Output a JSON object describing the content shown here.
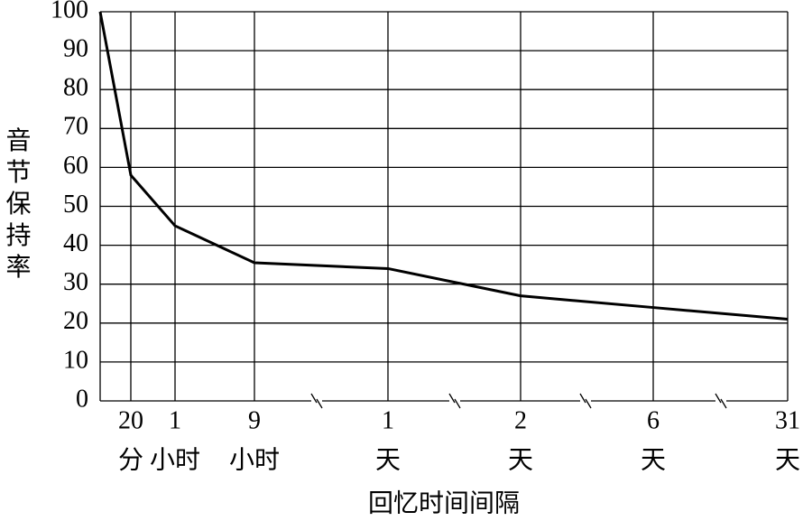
{
  "chart_data": {
    "type": "line",
    "y_label": "音节保持率",
    "x_label": "回忆时间间隔",
    "categories": [
      null,
      "20",
      "1",
      "9",
      "1",
      "2",
      "6",
      "31"
    ],
    "category_units": [
      null,
      "分",
      "小时",
      "小时",
      "天",
      "天",
      "天",
      "天"
    ],
    "series": [
      {
        "color": "#000000",
        "values": [
          100,
          58,
          45,
          35.5,
          34,
          27,
          24,
          21
        ]
      }
    ],
    "ylim": [
      0,
      100
    ],
    "yticks": [
      0,
      10,
      20,
      30,
      40,
      50,
      60,
      70,
      80,
      90,
      100
    ],
    "grid": true
  }
}
